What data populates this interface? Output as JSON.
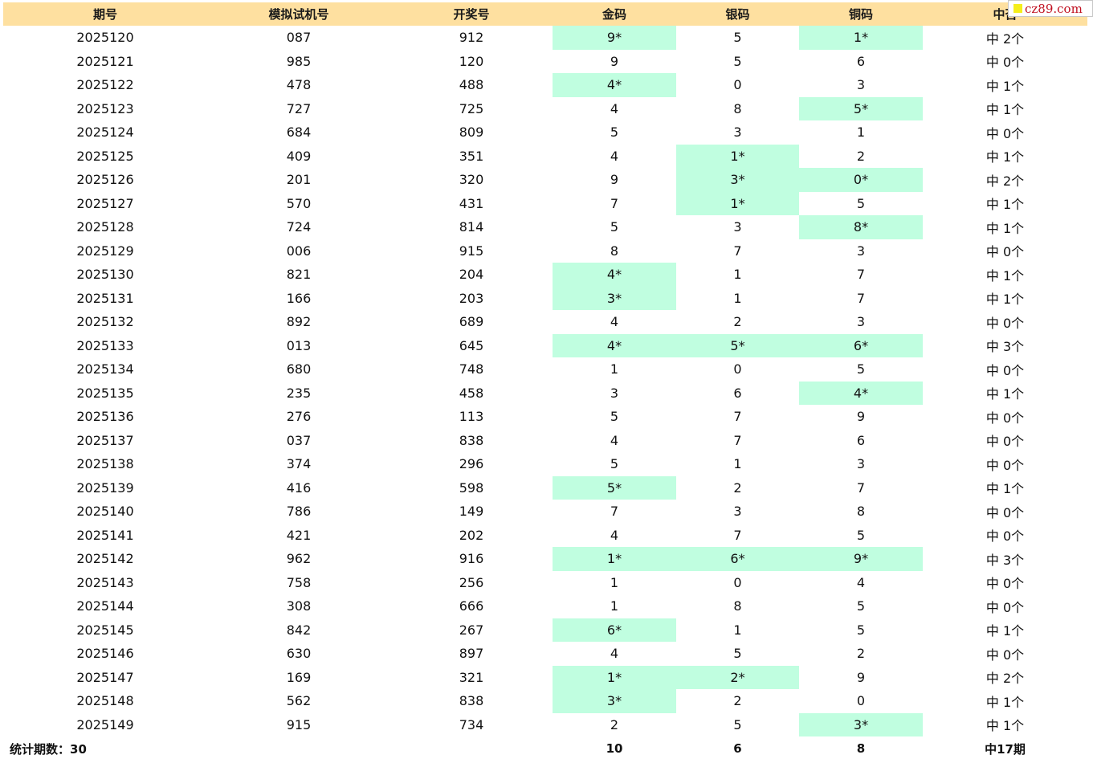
{
  "watermark": {
    "text": "cz89.com"
  },
  "colors": {
    "header_bg": "#FEE0A0",
    "hit_bg": "#C0FEE0",
    "watermark_text": "#C01020"
  },
  "table": {
    "columns": [
      "期号",
      "模拟试机号",
      "开奖号",
      "金码",
      "银码",
      "铜码",
      "中否"
    ],
    "rows": [
      {
        "issue": "2025120",
        "sim": "087",
        "draw": "912",
        "gold": "9*",
        "silver": "5",
        "bronze": "1*",
        "result": "中 2个",
        "hits": [
          true,
          false,
          true
        ]
      },
      {
        "issue": "2025121",
        "sim": "985",
        "draw": "120",
        "gold": "9",
        "silver": "5",
        "bronze": "6",
        "result": "中 0个",
        "hits": [
          false,
          false,
          false
        ]
      },
      {
        "issue": "2025122",
        "sim": "478",
        "draw": "488",
        "gold": "4*",
        "silver": "0",
        "bronze": "3",
        "result": "中 1个",
        "hits": [
          true,
          false,
          false
        ]
      },
      {
        "issue": "2025123",
        "sim": "727",
        "draw": "725",
        "gold": "4",
        "silver": "8",
        "bronze": "5*",
        "result": "中 1个",
        "hits": [
          false,
          false,
          true
        ]
      },
      {
        "issue": "2025124",
        "sim": "684",
        "draw": "809",
        "gold": "5",
        "silver": "3",
        "bronze": "1",
        "result": "中 0个",
        "hits": [
          false,
          false,
          false
        ]
      },
      {
        "issue": "2025125",
        "sim": "409",
        "draw": "351",
        "gold": "4",
        "silver": "1*",
        "bronze": "2",
        "result": "中 1个",
        "hits": [
          false,
          true,
          false
        ]
      },
      {
        "issue": "2025126",
        "sim": "201",
        "draw": "320",
        "gold": "9",
        "silver": "3*",
        "bronze": "0*",
        "result": "中 2个",
        "hits": [
          false,
          true,
          true
        ]
      },
      {
        "issue": "2025127",
        "sim": "570",
        "draw": "431",
        "gold": "7",
        "silver": "1*",
        "bronze": "5",
        "result": "中 1个",
        "hits": [
          false,
          true,
          false
        ]
      },
      {
        "issue": "2025128",
        "sim": "724",
        "draw": "814",
        "gold": "5",
        "silver": "3",
        "bronze": "8*",
        "result": "中 1个",
        "hits": [
          false,
          false,
          true
        ]
      },
      {
        "issue": "2025129",
        "sim": "006",
        "draw": "915",
        "gold": "8",
        "silver": "7",
        "bronze": "3",
        "result": "中 0个",
        "hits": [
          false,
          false,
          false
        ]
      },
      {
        "issue": "2025130",
        "sim": "821",
        "draw": "204",
        "gold": "4*",
        "silver": "1",
        "bronze": "7",
        "result": "中 1个",
        "hits": [
          true,
          false,
          false
        ]
      },
      {
        "issue": "2025131",
        "sim": "166",
        "draw": "203",
        "gold": "3*",
        "silver": "1",
        "bronze": "7",
        "result": "中 1个",
        "hits": [
          true,
          false,
          false
        ]
      },
      {
        "issue": "2025132",
        "sim": "892",
        "draw": "689",
        "gold": "4",
        "silver": "2",
        "bronze": "3",
        "result": "中 0个",
        "hits": [
          false,
          false,
          false
        ]
      },
      {
        "issue": "2025133",
        "sim": "013",
        "draw": "645",
        "gold": "4*",
        "silver": "5*",
        "bronze": "6*",
        "result": "中 3个",
        "hits": [
          true,
          true,
          true
        ]
      },
      {
        "issue": "2025134",
        "sim": "680",
        "draw": "748",
        "gold": "1",
        "silver": "0",
        "bronze": "5",
        "result": "中 0个",
        "hits": [
          false,
          false,
          false
        ]
      },
      {
        "issue": "2025135",
        "sim": "235",
        "draw": "458",
        "gold": "3",
        "silver": "6",
        "bronze": "4*",
        "result": "中 1个",
        "hits": [
          false,
          false,
          true
        ]
      },
      {
        "issue": "2025136",
        "sim": "276",
        "draw": "113",
        "gold": "5",
        "silver": "7",
        "bronze": "9",
        "result": "中 0个",
        "hits": [
          false,
          false,
          false
        ]
      },
      {
        "issue": "2025137",
        "sim": "037",
        "draw": "838",
        "gold": "4",
        "silver": "7",
        "bronze": "6",
        "result": "中 0个",
        "hits": [
          false,
          false,
          false
        ]
      },
      {
        "issue": "2025138",
        "sim": "374",
        "draw": "296",
        "gold": "5",
        "silver": "1",
        "bronze": "3",
        "result": "中 0个",
        "hits": [
          false,
          false,
          false
        ]
      },
      {
        "issue": "2025139",
        "sim": "416",
        "draw": "598",
        "gold": "5*",
        "silver": "2",
        "bronze": "7",
        "result": "中 1个",
        "hits": [
          true,
          false,
          false
        ]
      },
      {
        "issue": "2025140",
        "sim": "786",
        "draw": "149",
        "gold": "7",
        "silver": "3",
        "bronze": "8",
        "result": "中 0个",
        "hits": [
          false,
          false,
          false
        ]
      },
      {
        "issue": "2025141",
        "sim": "421",
        "draw": "202",
        "gold": "4",
        "silver": "7",
        "bronze": "5",
        "result": "中 0个",
        "hits": [
          false,
          false,
          false
        ]
      },
      {
        "issue": "2025142",
        "sim": "962",
        "draw": "916",
        "gold": "1*",
        "silver": "6*",
        "bronze": "9*",
        "result": "中 3个",
        "hits": [
          true,
          true,
          true
        ]
      },
      {
        "issue": "2025143",
        "sim": "758",
        "draw": "256",
        "gold": "1",
        "silver": "0",
        "bronze": "4",
        "result": "中 0个",
        "hits": [
          false,
          false,
          false
        ]
      },
      {
        "issue": "2025144",
        "sim": "308",
        "draw": "666",
        "gold": "1",
        "silver": "8",
        "bronze": "5",
        "result": "中 0个",
        "hits": [
          false,
          false,
          false
        ]
      },
      {
        "issue": "2025145",
        "sim": "842",
        "draw": "267",
        "gold": "6*",
        "silver": "1",
        "bronze": "5",
        "result": "中 1个",
        "hits": [
          true,
          false,
          false
        ]
      },
      {
        "issue": "2025146",
        "sim": "630",
        "draw": "897",
        "gold": "4",
        "silver": "5",
        "bronze": "2",
        "result": "中 0个",
        "hits": [
          false,
          false,
          false
        ]
      },
      {
        "issue": "2025147",
        "sim": "169",
        "draw": "321",
        "gold": "1*",
        "silver": "2*",
        "bronze": "9",
        "result": "中 2个",
        "hits": [
          true,
          true,
          false
        ]
      },
      {
        "issue": "2025148",
        "sim": "562",
        "draw": "838",
        "gold": "3*",
        "silver": "2",
        "bronze": "0",
        "result": "中 1个",
        "hits": [
          true,
          false,
          false
        ]
      },
      {
        "issue": "2025149",
        "sim": "915",
        "draw": "734",
        "gold": "2",
        "silver": "5",
        "bronze": "3*",
        "result": "中 1个",
        "hits": [
          false,
          false,
          true
        ]
      }
    ],
    "footer": {
      "label": "统计期数：30",
      "gold_total": "10",
      "silver_total": "6",
      "bronze_total": "8",
      "result_total": "中17期"
    }
  }
}
